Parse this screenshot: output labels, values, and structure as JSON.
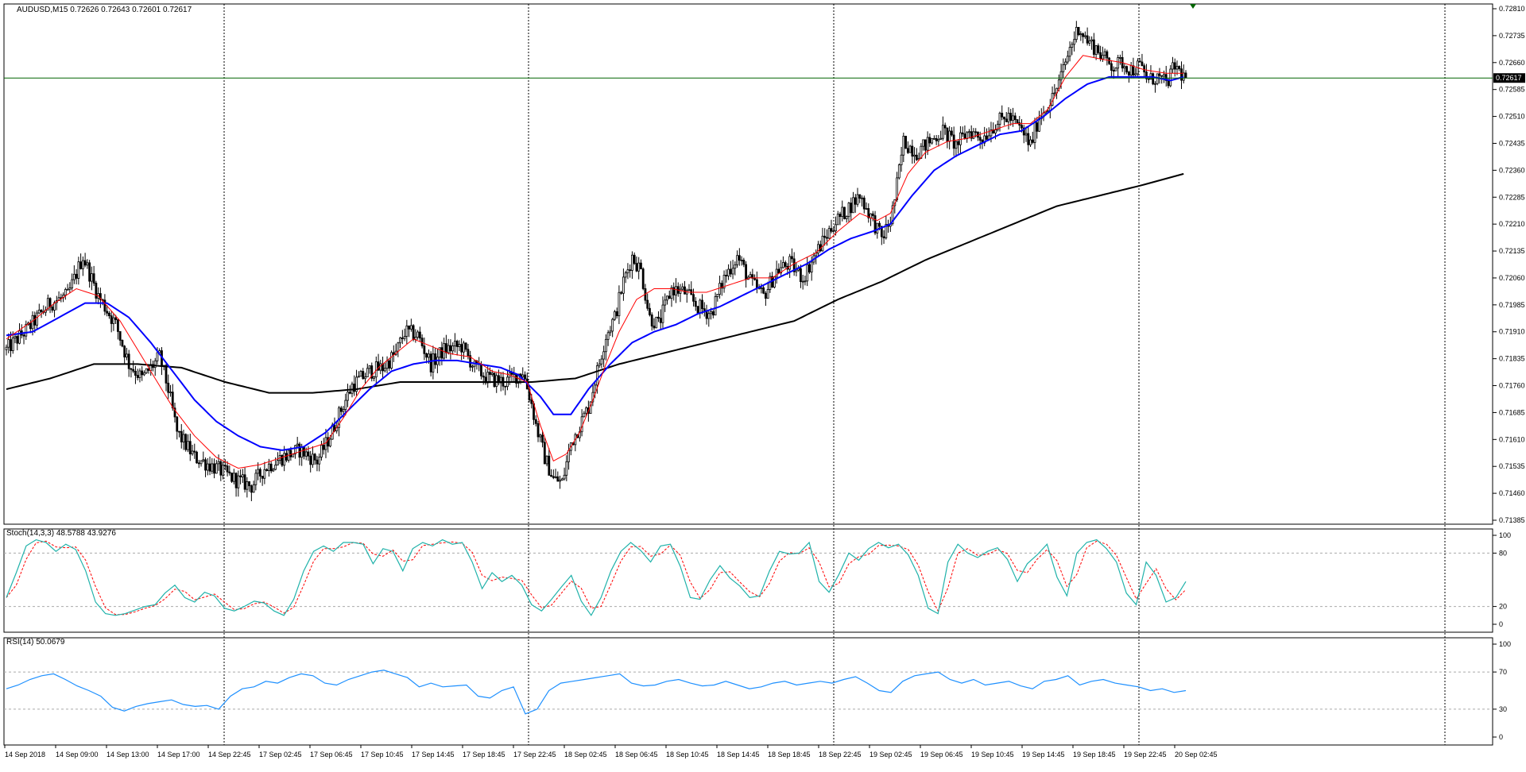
{
  "window": {
    "symbol_line": "AUDUSD,M15  0.72626 0.72643 0.72601 0.72617",
    "current_price_label": "0.72617"
  },
  "colors": {
    "background": "#ffffff",
    "grid": "#000000",
    "candle": "#000000",
    "ma_fast": "#ff0000",
    "ma_mid": "#0000ff",
    "ma_slow": "#000000",
    "price_line": "#006400",
    "stoch_main": "#20b2aa",
    "stoch_signal": "#ff0000",
    "rsi": "#1e90ff"
  },
  "chart_data": [
    {
      "type": "candlestick",
      "title": "AUDUSD,M15  0.72626 0.72643 0.72601 0.72617",
      "y_ticks": [
        "0.72810",
        "0.72735",
        "0.72660",
        "0.72585",
        "0.72510",
        "0.72435",
        "0.72360",
        "0.72285",
        "0.72210",
        "0.72135",
        "0.72060",
        "0.71985",
        "0.71910",
        "0.71835",
        "0.71760",
        "0.71685",
        "0.71610",
        "0.71535",
        "0.71460",
        "0.71385"
      ],
      "ylim": [
        0.71385,
        0.7281
      ],
      "x_labels": [
        "14 Sep 2018",
        "14 Sep 09:00",
        "14 Sep 13:00",
        "14 Sep 17:00",
        "14 Sep 22:45",
        "17 Sep 02:45",
        "17 Sep 06:45",
        "17 Sep 10:45",
        "17 Sep 14:45",
        "17 Sep 18:45",
        "17 Sep 22:45",
        "18 Sep 02:45",
        "18 Sep 06:45",
        "18 Sep 10:45",
        "18 Sep 14:45",
        "18 Sep 18:45",
        "18 Sep 22:45",
        "19 Sep 02:45",
        "19 Sep 06:45",
        "19 Sep 10:45",
        "19 Sep 14:45",
        "19 Sep 18:45",
        "19 Sep 22:45",
        "20 Sep 02:45"
      ],
      "last_price": 0.72617,
      "close_path": [
        [
          0,
          0.7186
        ],
        [
          10,
          0.7192
        ],
        [
          20,
          0.7199
        ],
        [
          28,
          0.7201
        ],
        [
          35,
          0.7212
        ],
        [
          42,
          0.7201
        ],
        [
          50,
          0.7193
        ],
        [
          56,
          0.7182
        ],
        [
          62,
          0.7178
        ],
        [
          70,
          0.7184
        ],
        [
          74,
          0.7175
        ],
        [
          78,
          0.7163
        ],
        [
          86,
          0.7156
        ],
        [
          96,
          0.7153
        ],
        [
          104,
          0.715
        ],
        [
          112,
          0.7148
        ],
        [
          118,
          0.7153
        ],
        [
          126,
          0.7156
        ],
        [
          134,
          0.7158
        ],
        [
          142,
          0.7155
        ],
        [
          148,
          0.7162
        ],
        [
          152,
          0.7168
        ],
        [
          158,
          0.7176
        ],
        [
          166,
          0.718
        ],
        [
          172,
          0.7181
        ],
        [
          178,
          0.7185
        ],
        [
          182,
          0.7191
        ],
        [
          188,
          0.719
        ],
        [
          194,
          0.7182
        ],
        [
          200,
          0.7186
        ],
        [
          208,
          0.7187
        ],
        [
          214,
          0.7181
        ],
        [
          220,
          0.7178
        ],
        [
          228,
          0.7177
        ],
        [
          236,
          0.718
        ],
        [
          240,
          0.7171
        ],
        [
          242,
          0.7165
        ],
        [
          246,
          0.7156
        ],
        [
          250,
          0.715
        ],
        [
          254,
          0.7149
        ],
        [
          258,
          0.716
        ],
        [
          262,
          0.7165
        ],
        [
          266,
          0.717
        ],
        [
          270,
          0.718
        ],
        [
          274,
          0.719
        ],
        [
          278,
          0.7195
        ],
        [
          282,
          0.7205
        ],
        [
          286,
          0.7212
        ],
        [
          290,
          0.7208
        ],
        [
          294,
          0.7195
        ],
        [
          298,
          0.7193
        ],
        [
          304,
          0.7203
        ],
        [
          310,
          0.7202
        ],
        [
          316,
          0.7198
        ],
        [
          322,
          0.7196
        ],
        [
          328,
          0.7206
        ],
        [
          334,
          0.7212
        ],
        [
          340,
          0.7205
        ],
        [
          346,
          0.7201
        ],
        [
          352,
          0.7208
        ],
        [
          358,
          0.721
        ],
        [
          364,
          0.7206
        ],
        [
          370,
          0.7213
        ],
        [
          374,
          0.7217
        ],
        [
          378,
          0.7221
        ],
        [
          384,
          0.7225
        ],
        [
          390,
          0.7229
        ],
        [
          396,
          0.7222
        ],
        [
          400,
          0.7217
        ],
        [
          404,
          0.7222
        ],
        [
          406,
          0.7228
        ],
        [
          410,
          0.7244
        ],
        [
          416,
          0.7241
        ],
        [
          422,
          0.7244
        ],
        [
          428,
          0.7247
        ],
        [
          434,
          0.7243
        ],
        [
          440,
          0.7247
        ],
        [
          446,
          0.7245
        ],
        [
          452,
          0.7249
        ],
        [
          458,
          0.7251
        ],
        [
          464,
          0.7247
        ],
        [
          468,
          0.7243
        ],
        [
          472,
          0.7251
        ],
        [
          478,
          0.7256
        ],
        [
          482,
          0.7262
        ],
        [
          486,
          0.727
        ],
        [
          490,
          0.7276
        ],
        [
          494,
          0.7272
        ],
        [
          498,
          0.727
        ],
        [
          502,
          0.7267
        ],
        [
          506,
          0.7265
        ],
        [
          510,
          0.7266
        ],
        [
          514,
          0.7264
        ],
        [
          518,
          0.7265
        ],
        [
          522,
          0.7261
        ],
        [
          526,
          0.7262
        ],
        [
          530,
          0.726
        ],
        [
          534,
          0.7265
        ],
        [
          538,
          0.7262
        ]
      ],
      "ma_fast_path": [
        [
          0,
          0.7189
        ],
        [
          12,
          0.7194
        ],
        [
          22,
          0.7199
        ],
        [
          32,
          0.7203
        ],
        [
          42,
          0.7201
        ],
        [
          52,
          0.7194
        ],
        [
          60,
          0.7186
        ],
        [
          68,
          0.7178
        ],
        [
          76,
          0.717
        ],
        [
          86,
          0.7162
        ],
        [
          96,
          0.7156
        ],
        [
          106,
          0.7153
        ],
        [
          116,
          0.7154
        ],
        [
          126,
          0.7156
        ],
        [
          136,
          0.7158
        ],
        [
          146,
          0.716
        ],
        [
          154,
          0.7167
        ],
        [
          162,
          0.7175
        ],
        [
          170,
          0.7181
        ],
        [
          178,
          0.7185
        ],
        [
          186,
          0.7189
        ],
        [
          194,
          0.7187
        ],
        [
          202,
          0.7185
        ],
        [
          212,
          0.7184
        ],
        [
          222,
          0.718
        ],
        [
          230,
          0.7179
        ],
        [
          238,
          0.7177
        ],
        [
          244,
          0.7165
        ],
        [
          250,
          0.7155
        ],
        [
          256,
          0.7157
        ],
        [
          262,
          0.7163
        ],
        [
          268,
          0.7172
        ],
        [
          274,
          0.7182
        ],
        [
          280,
          0.7191
        ],
        [
          288,
          0.72
        ],
        [
          296,
          0.7203
        ],
        [
          304,
          0.7203
        ],
        [
          312,
          0.7202
        ],
        [
          320,
          0.7202
        ],
        [
          330,
          0.7204
        ],
        [
          340,
          0.7206
        ],
        [
          350,
          0.7206
        ],
        [
          360,
          0.721
        ],
        [
          370,
          0.7213
        ],
        [
          380,
          0.7219
        ],
        [
          390,
          0.7224
        ],
        [
          398,
          0.7222
        ],
        [
          404,
          0.7224
        ],
        [
          412,
          0.7235
        ],
        [
          420,
          0.7241
        ],
        [
          430,
          0.7244
        ],
        [
          440,
          0.7245
        ],
        [
          450,
          0.7247
        ],
        [
          460,
          0.7249
        ],
        [
          468,
          0.7249
        ],
        [
          476,
          0.7253
        ],
        [
          484,
          0.7262
        ],
        [
          492,
          0.7268
        ],
        [
          500,
          0.7267
        ],
        [
          510,
          0.7266
        ],
        [
          520,
          0.7264
        ],
        [
          530,
          0.7263
        ],
        [
          538,
          0.7263
        ]
      ],
      "ma_mid_path": [
        [
          0,
          0.719
        ],
        [
          12,
          0.7191
        ],
        [
          24,
          0.7195
        ],
        [
          36,
          0.7199
        ],
        [
          46,
          0.7199
        ],
        [
          56,
          0.7195
        ],
        [
          66,
          0.7188
        ],
        [
          76,
          0.718
        ],
        [
          86,
          0.7172
        ],
        [
          96,
          0.7166
        ],
        [
          106,
          0.7162
        ],
        [
          116,
          0.7159
        ],
        [
          126,
          0.7158
        ],
        [
          136,
          0.7159
        ],
        [
          146,
          0.7163
        ],
        [
          156,
          0.7169
        ],
        [
          166,
          0.7175
        ],
        [
          176,
          0.718
        ],
        [
          186,
          0.7182
        ],
        [
          196,
          0.7183
        ],
        [
          206,
          0.7183
        ],
        [
          216,
          0.7182
        ],
        [
          226,
          0.7181
        ],
        [
          234,
          0.7179
        ],
        [
          244,
          0.7173
        ],
        [
          250,
          0.7168
        ],
        [
          258,
          0.7168
        ],
        [
          266,
          0.7175
        ],
        [
          276,
          0.7182
        ],
        [
          286,
          0.7188
        ],
        [
          296,
          0.7191
        ],
        [
          306,
          0.7193
        ],
        [
          316,
          0.7196
        ],
        [
          326,
          0.7198
        ],
        [
          336,
          0.7201
        ],
        [
          346,
          0.7204
        ],
        [
          356,
          0.7207
        ],
        [
          366,
          0.721
        ],
        [
          376,
          0.7214
        ],
        [
          386,
          0.7217
        ],
        [
          396,
          0.7219
        ],
        [
          404,
          0.7221
        ],
        [
          414,
          0.7229
        ],
        [
          424,
          0.7236
        ],
        [
          434,
          0.724
        ],
        [
          444,
          0.7243
        ],
        [
          454,
          0.7246
        ],
        [
          464,
          0.7247
        ],
        [
          474,
          0.7251
        ],
        [
          484,
          0.7256
        ],
        [
          494,
          0.726
        ],
        [
          504,
          0.7262
        ],
        [
          514,
          0.7262
        ],
        [
          524,
          0.7262
        ],
        [
          532,
          0.7261
        ],
        [
          538,
          0.7262
        ]
      ],
      "ma_slow_path": [
        [
          0,
          0.7175
        ],
        [
          20,
          0.7178
        ],
        [
          40,
          0.7182
        ],
        [
          60,
          0.7182
        ],
        [
          80,
          0.7181
        ],
        [
          100,
          0.7177
        ],
        [
          120,
          0.7174
        ],
        [
          140,
          0.7174
        ],
        [
          160,
          0.7175
        ],
        [
          180,
          0.7177
        ],
        [
          200,
          0.7177
        ],
        [
          220,
          0.7177
        ],
        [
          240,
          0.7177
        ],
        [
          260,
          0.7178
        ],
        [
          280,
          0.7182
        ],
        [
          300,
          0.7185
        ],
        [
          320,
          0.7188
        ],
        [
          340,
          0.7191
        ],
        [
          360,
          0.7194
        ],
        [
          380,
          0.72
        ],
        [
          400,
          0.7205
        ],
        [
          420,
          0.7211
        ],
        [
          440,
          0.7216
        ],
        [
          460,
          0.7221
        ],
        [
          480,
          0.7226
        ],
        [
          500,
          0.7229
        ],
        [
          520,
          0.7232
        ],
        [
          538,
          0.7235
        ]
      ]
    },
    {
      "type": "line",
      "title": "Stoch(14,3,3) 48.5788 43.9276",
      "ylim": [
        0,
        100
      ],
      "y_ticks": [
        "100",
        "80",
        "20",
        "0"
      ],
      "levels": [
        80,
        20
      ],
      "series": [
        {
          "name": "Stoch main",
          "values": [
            30,
            58,
            88,
            95,
            92,
            82,
            90,
            84,
            60,
            25,
            12,
            10,
            12,
            16,
            20,
            22,
            35,
            44,
            30,
            25,
            36,
            32,
            18,
            15,
            20,
            26,
            24,
            15,
            10,
            28,
            60,
            82,
            88,
            82,
            92,
            92,
            90,
            68,
            85,
            82,
            60,
            85,
            92,
            88,
            95,
            90,
            92,
            70,
            40,
            58,
            48,
            55,
            44,
            22,
            15,
            28,
            42,
            55,
            26,
            10,
            30,
            60,
            82,
            92,
            83,
            70,
            88,
            90,
            65,
            30,
            28,
            50,
            66,
            52,
            43,
            30,
            32,
            60,
            82,
            79,
            80,
            92,
            48,
            36,
            56,
            80,
            72,
            85,
            92,
            86,
            90,
            78,
            55,
            18,
            12,
            70,
            90,
            80,
            75,
            82,
            86,
            73,
            48,
            68,
            78,
            90,
            53,
            32,
            80,
            92,
            95,
            85,
            70,
            35,
            22,
            70,
            55,
            25,
            30,
            48
          ]
        }
      ]
    },
    {
      "type": "line",
      "title": "RSI(14) 50.0679",
      "ylim": [
        0,
        100
      ],
      "y_ticks": [
        "100",
        "70",
        "30",
        "0"
      ],
      "levels": [
        70,
        30
      ],
      "series": [
        {
          "name": "RSI",
          "values": [
            52,
            56,
            62,
            66,
            68,
            62,
            55,
            50,
            44,
            32,
            28,
            33,
            36,
            38,
            40,
            35,
            33,
            34,
            30,
            44,
            52,
            54,
            60,
            58,
            64,
            68,
            66,
            58,
            56,
            62,
            66,
            70,
            72,
            68,
            64,
            54,
            58,
            54,
            55,
            56,
            44,
            42,
            50,
            54,
            25,
            30,
            50,
            58,
            60,
            62,
            64,
            66,
            68,
            58,
            55,
            56,
            60,
            62,
            58,
            55,
            56,
            60,
            56,
            52,
            54,
            58,
            60,
            56,
            58,
            60,
            58,
            62,
            65,
            58,
            50,
            48,
            60,
            66,
            68,
            70,
            62,
            58,
            62,
            56,
            58,
            60,
            55,
            52,
            60,
            62,
            66,
            56,
            60,
            62,
            58,
            56,
            54,
            50,
            52,
            48,
            50
          ]
        }
      ]
    }
  ]
}
